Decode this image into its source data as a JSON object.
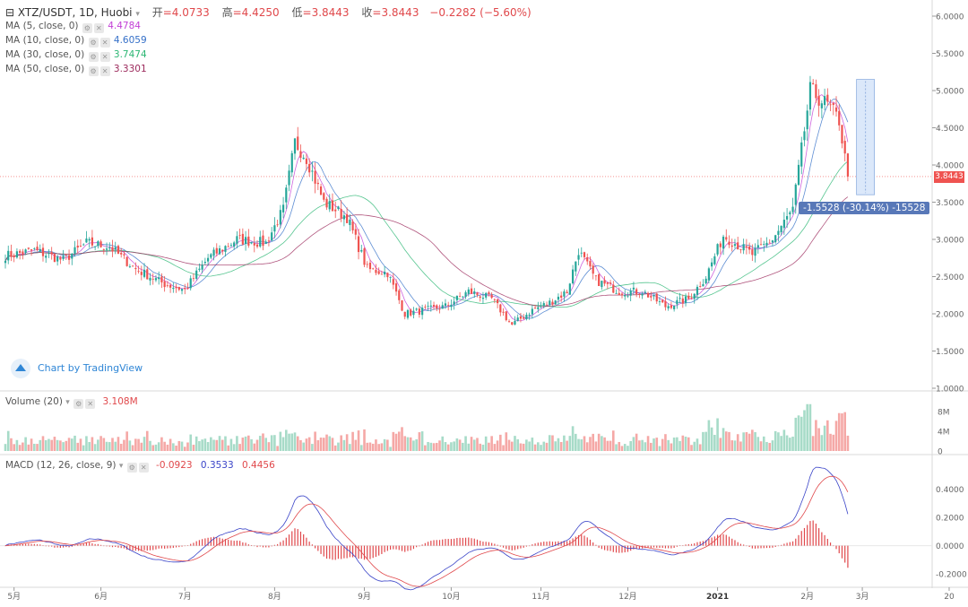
{
  "header": {
    "symbol": "XTZ/USDT, 1D, Huobi",
    "open_label": "开",
    "open": "=4.0733",
    "high_label": "高",
    "high": "=4.4250",
    "low_label": "低",
    "low": "=3.8443",
    "close_label": "收",
    "close": "=3.8443",
    "change": "−0.2282 (−5.60%)"
  },
  "ma_legend": [
    {
      "label": "MA (5, close, 0)",
      "value": "4.4784",
      "color": "#c23fd6"
    },
    {
      "label": "MA (10, close, 0)",
      "value": "4.6059",
      "color": "#3570c8"
    },
    {
      "label": "MA (30, close, 0)",
      "value": "3.7474",
      "color": "#2bb673"
    },
    {
      "label": "MA (50, close, 0)",
      "value": "3.3301",
      "color": "#9c2a5c"
    }
  ],
  "volume_legend": {
    "label": "Volume (20)",
    "value": "3.108M"
  },
  "macd_legend": {
    "label": "MACD (12, 26, close, 9)",
    "hist": "-0.0923",
    "macd": "0.3533",
    "signal": "0.4456"
  },
  "last_price": "3.8443",
  "measure_label": "-1.5528 (-30.14%) -15528",
  "watermark": "Chart by TradingView",
  "colors": {
    "up": "#26a69a",
    "down": "#ef5350",
    "vol_up": "#a7dbc8",
    "vol_down": "#f5a8a6",
    "macd_line": "#3a44c8",
    "signal_line": "#e0484b"
  },
  "chart_data": {
    "type": "candlestick",
    "title": "XTZ/USDT, 1D, Huobi",
    "x_ticks": [
      "5月",
      "6月",
      "7月",
      "8月",
      "9月",
      "10月",
      "11月",
      "12月",
      "2021",
      "2月",
      "3月",
      "20"
    ],
    "price_ticks": [
      "6.0000",
      "5.5000",
      "5.0000",
      "4.5000",
      "4.0000",
      "3.5000",
      "3.0000",
      "2.5000",
      "2.0000",
      "1.5000",
      "1.0000"
    ],
    "price_range": [
      1.0,
      6.0
    ],
    "volume_ticks": [
      "8M",
      "4M",
      "0"
    ],
    "macd_ticks": [
      "0.4000",
      "0.2000",
      "0.0000",
      "-0.2000"
    ],
    "close_anchors": [
      [
        0,
        2.78
      ],
      [
        10,
        2.85
      ],
      [
        20,
        2.72
      ],
      [
        28,
        2.95
      ],
      [
        36,
        2.9
      ],
      [
        45,
        2.6
      ],
      [
        55,
        2.4
      ],
      [
        62,
        2.32
      ],
      [
        70,
        2.75
      ],
      [
        80,
        3.0
      ],
      [
        90,
        2.95
      ],
      [
        96,
        3.4
      ],
      [
        100,
        4.3
      ],
      [
        104,
        4.1
      ],
      [
        110,
        3.5
      ],
      [
        118,
        3.3
      ],
      [
        125,
        2.6
      ],
      [
        132,
        2.55
      ],
      [
        138,
        2.0
      ],
      [
        145,
        2.05
      ],
      [
        152,
        2.1
      ],
      [
        160,
        2.3
      ],
      [
        168,
        2.2
      ],
      [
        175,
        1.85
      ],
      [
        182,
        2.05
      ],
      [
        188,
        2.15
      ],
      [
        194,
        2.3
      ],
      [
        198,
        2.85
      ],
      [
        204,
        2.45
      ],
      [
        212,
        2.3
      ],
      [
        220,
        2.3
      ],
      [
        228,
        2.1
      ],
      [
        236,
        2.2
      ],
      [
        242,
        2.5
      ],
      [
        248,
        3.05
      ],
      [
        252,
        2.95
      ],
      [
        258,
        2.8
      ],
      [
        265,
        3.0
      ],
      [
        272,
        3.4
      ],
      [
        278,
        5.0
      ],
      [
        284,
        4.8
      ],
      [
        288,
        4.6
      ],
      [
        291,
        3.84
      ]
    ],
    "volume_range": [
      0,
      10
    ],
    "macd_range": [
      -0.25,
      0.55
    ],
    "last_close": 3.8443
  }
}
